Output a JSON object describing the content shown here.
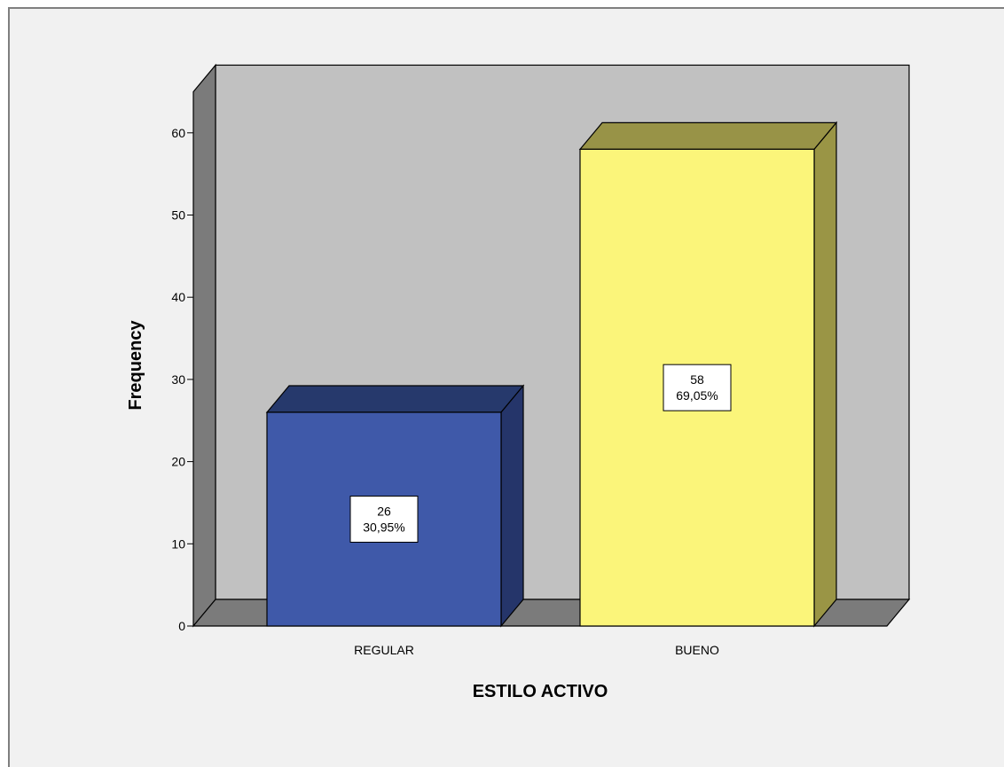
{
  "chart_data": {
    "type": "bar",
    "title": "",
    "xlabel": "ESTILO ACTIVO",
    "ylabel": "Frequency",
    "categories": [
      "REGULAR",
      "BUENO"
    ],
    "values": [
      26,
      58
    ],
    "percent_labels": [
      "30,95%",
      "69,05%"
    ],
    "ylim": [
      0,
      65
    ],
    "yticks": [
      0,
      10,
      20,
      30,
      40,
      50,
      60
    ],
    "grid": false,
    "legend": "none",
    "three_d": true,
    "colors": {
      "bars": [
        "#3f59a9",
        "#fbf57a"
      ],
      "bar_tops": [
        "#26396c",
        "#989347"
      ],
      "bar_sides": [
        "#25356a",
        "#9a9545"
      ],
      "back_wall": "#c1c1c1",
      "side_wall": "#7b7b7b",
      "floor": "#7b7b7b",
      "frame_background": "#f1f1f1"
    }
  }
}
